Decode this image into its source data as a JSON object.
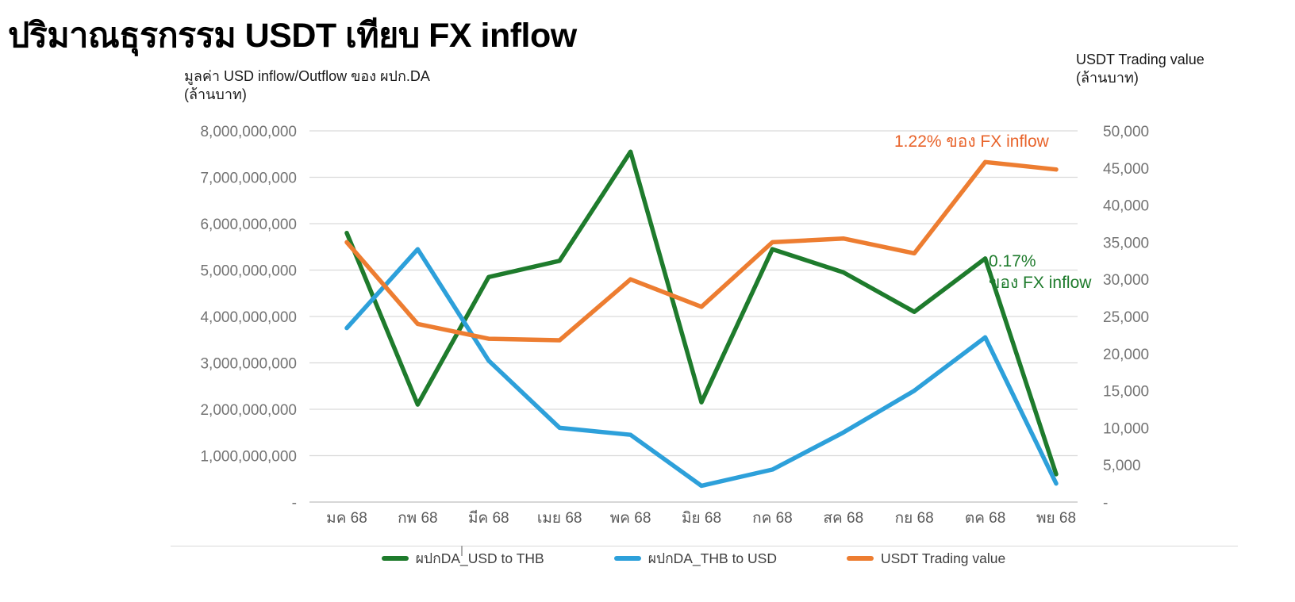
{
  "slide": {
    "title": "ปริมาณธุรกรรม USDT เทียบ FX inflow"
  },
  "chart_data": {
    "type": "line",
    "title": "ปริมาณธุรกรรม USDT เทียบ FX inflow",
    "grid": "horizontal",
    "legend_position": "bottom",
    "categories": [
      "มค 68",
      "กพ 68",
      "มีค 68",
      "เมย 68",
      "พค 68",
      "มิย 68",
      "กค 68",
      "สค 68",
      "กย 68",
      "ตค 68",
      "พย 68"
    ],
    "axes": {
      "left": {
        "title_line1": "มูลค่า USD inflow/Outflow ของ ผปก.DA",
        "title_line2": "(ล้านบาท)",
        "min": 0,
        "max": 8000000000,
        "tick_labels": [
          "8,000,000,000",
          "7,000,000,000",
          "6,000,000,000",
          "5,000,000,000",
          "4,000,000,000",
          "3,000,000,000",
          "2,000,000,000",
          "1,000,000,000",
          "-"
        ]
      },
      "right": {
        "title_line1": "USDT Trading value",
        "title_line2": "(ล้านบาท)",
        "min": 0,
        "max": 50000,
        "tick_labels": [
          "50,000",
          "45,000",
          "40,000",
          "35,000",
          "30,000",
          "25,000",
          "20,000",
          "15,000",
          "10,000",
          "5,000",
          "-"
        ]
      }
    },
    "series": [
      {
        "name": "ผปกDA_USD to THB",
        "axis": "left",
        "color": "#1e7b2c",
        "values": [
          5800000000,
          2100000000,
          4850000000,
          5200000000,
          7550000000,
          2150000000,
          5450000000,
          4950000000,
          4100000000,
          5250000000,
          600000000
        ]
      },
      {
        "name": "ผปกDA_THB to USD",
        "axis": "left",
        "color": "#2da0da",
        "values": [
          3750000000,
          5450000000,
          3050000000,
          1600000000,
          1450000000,
          350000000,
          700000000,
          1500000000,
          2400000000,
          3550000000,
          400000000
        ]
      },
      {
        "name": "USDT Trading value",
        "axis": "right",
        "color": "#ed7d31",
        "values": [
          35000,
          24000,
          22000,
          21800,
          30000,
          26300,
          35000,
          35500,
          33500,
          45800,
          44800
        ]
      }
    ],
    "annotations": [
      {
        "id": "usdt-share-of-fx-inflow",
        "text": "1.22% ของ FX inflow",
        "color": "#e8632a"
      },
      {
        "id": "da-share-of-fx-inflow",
        "line1": "0.17%",
        "line2": "ของ FX inflow",
        "color": "#1e7b2c"
      }
    ],
    "colors": {
      "gridline": "#d9d9d9",
      "axis_line": "#bfbfbf",
      "tick_label": "#737373",
      "x_label": "#595959"
    }
  }
}
